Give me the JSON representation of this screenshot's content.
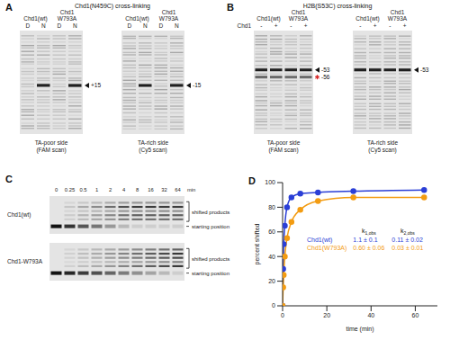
{
  "panel_a": {
    "letter": "A",
    "title": "Chd1(N459C) cross-linking",
    "gels": [
      {
        "groups": [
          "Chd1(wt)",
          "Chd1 W793A"
        ],
        "lanes": [
          "D",
          "N",
          "D",
          "N"
        ],
        "band_labels": [
          "+15"
        ],
        "caption": "TA-poor side (FAM scan)"
      },
      {
        "groups": [
          "Chd1(wt)",
          "Chd1 W793A"
        ],
        "lanes": [
          "D",
          "N",
          "D",
          "N"
        ],
        "band_labels": [
          "-15"
        ],
        "caption": "TA-rich side (Cy5 scan)"
      }
    ]
  },
  "panel_b": {
    "letter": "B",
    "title": "H2B(S53C) cross-linking",
    "row_label": "Chd1",
    "gels": [
      {
        "groups": [
          "Chd1(wt)",
          "Chd1 W793A"
        ],
        "lanes": [
          "-",
          "+",
          "-",
          "+"
        ],
        "band_labels": [
          "-53",
          "-56"
        ],
        "caption": "TA-poor side (FAM scan)"
      },
      {
        "groups": [
          "Chd1(wt)",
          "Chd1 W793A"
        ],
        "lanes": [
          "-",
          "+",
          "-",
          "+"
        ],
        "band_labels": [
          "-53"
        ],
        "caption": "TA-rich side (Cy5 scan)"
      }
    ]
  },
  "panel_c": {
    "letter": "C",
    "times": [
      "0",
      "0.25",
      "0.5",
      "1",
      "2",
      "4",
      "8",
      "16",
      "32",
      "64"
    ],
    "time_unit": "min",
    "rows": [
      "Chd1(wt)",
      "Chd1-W793A"
    ],
    "band_labels": [
      "shifted products",
      "starting position"
    ]
  },
  "chart_data": {
    "letter": "D",
    "type": "line",
    "x_label": "time (min)",
    "y_label": "percent shifted",
    "x": [
      0,
      0.25,
      0.5,
      1,
      2,
      4,
      8,
      16,
      32,
      64
    ],
    "series": [
      {
        "name": "Chd1(wt)",
        "color": "#2b3fd6",
        "values": [
          0,
          30,
          50,
          65,
          80,
          88,
          91,
          92,
          93,
          94
        ],
        "k_obs": [
          "1.1 ± 0.1",
          "0.11 ± 0.02"
        ]
      },
      {
        "name": "Chd1(W793A)",
        "color": "#f39c12",
        "values": [
          0,
          15,
          25,
          40,
          55,
          68,
          78,
          85,
          88,
          88
        ],
        "k_obs": [
          "0.60 ± 0.06",
          "0.03 ± 0.01"
        ]
      }
    ],
    "k_labels": [
      "k1,obs",
      "k2,obs"
    ],
    "xlim": [
      0,
      70
    ],
    "xticks": [
      0,
      20,
      40,
      60
    ],
    "ylim": [
      0,
      100
    ],
    "yticks": [
      0,
      20,
      40,
      60,
      80,
      100
    ],
    "marker": "circle",
    "grid": false
  }
}
